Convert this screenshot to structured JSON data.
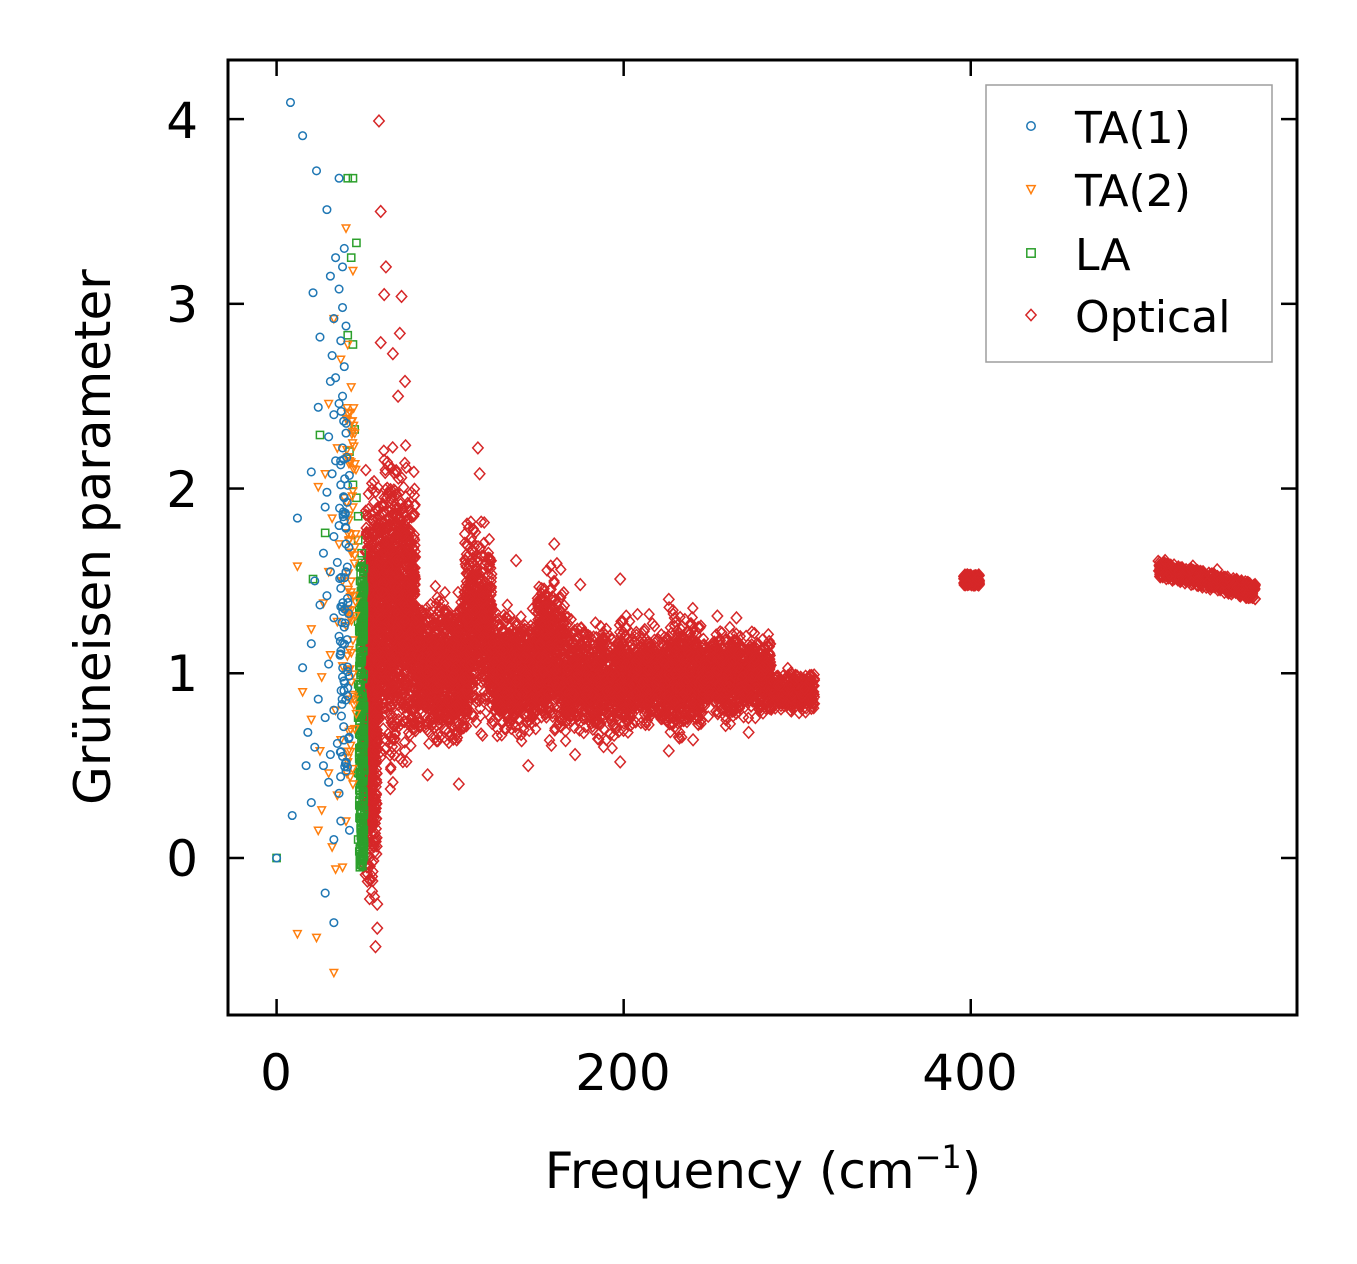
{
  "chart_data": {
    "type": "scatter",
    "title": "",
    "xlabel": "Frequency (cm",
    "xlabel_sup": "−1",
    "xlabel_tail": ")",
    "ylabel": "Grüneisen parameter",
    "xlim": [
      -28,
      588
    ],
    "ylim": [
      -0.85,
      4.32
    ],
    "xticks": [
      0,
      200,
      400
    ],
    "xtick_labels": [
      "0",
      "200",
      "400"
    ],
    "yticks": [
      0,
      1,
      2,
      3,
      4
    ],
    "ytick_labels": [
      "0",
      "1",
      "2",
      "3",
      "4"
    ],
    "grid": false,
    "legend_position": "top-right",
    "colors": {
      "ta1": "#1f77b4",
      "ta2": "#ff7f0e",
      "la": "#2ca02c",
      "optical": "#d62728"
    },
    "series": [
      {
        "name": "TA(1)",
        "color": "#1f77b4",
        "marker": "circle",
        "points": [
          [
            8,
            4.09
          ],
          [
            15,
            3.91
          ],
          [
            23,
            3.72
          ],
          [
            29,
            3.51
          ],
          [
            36,
            3.68
          ],
          [
            39,
            3.3
          ],
          [
            34,
            3.25
          ],
          [
            38,
            3.2
          ],
          [
            31,
            3.15
          ],
          [
            36,
            3.08
          ],
          [
            21,
            3.06
          ],
          [
            38,
            2.98
          ],
          [
            33,
            2.92
          ],
          [
            40,
            2.88
          ],
          [
            25,
            2.82
          ],
          [
            37,
            2.8
          ],
          [
            32,
            2.72
          ],
          [
            39,
            2.66
          ],
          [
            34,
            2.6
          ],
          [
            31,
            2.58
          ],
          [
            38,
            2.5
          ],
          [
            36,
            2.46
          ],
          [
            24,
            2.44
          ],
          [
            33,
            2.4
          ],
          [
            40,
            2.3
          ],
          [
            30,
            2.28
          ],
          [
            38,
            2.22
          ],
          [
            34,
            2.15
          ],
          [
            32,
            2.08
          ],
          [
            20,
            2.09
          ],
          [
            37,
            2.02
          ],
          [
            29,
            1.98
          ],
          [
            39,
            1.95
          ],
          [
            28,
            1.9
          ],
          [
            12,
            1.84
          ],
          [
            36,
            1.8
          ],
          [
            33,
            1.74
          ],
          [
            40,
            1.7
          ],
          [
            27,
            1.65
          ],
          [
            35,
            1.6
          ],
          [
            31,
            1.55
          ],
          [
            22,
            1.5
          ],
          [
            37,
            1.46
          ],
          [
            29,
            1.42
          ],
          [
            25,
            1.37
          ],
          [
            33,
            1.3
          ],
          [
            39,
            1.25
          ],
          [
            36,
            1.2
          ],
          [
            20,
            1.16
          ],
          [
            15,
            1.03
          ],
          [
            30,
            1.05
          ],
          [
            38,
            0.98
          ],
          [
            41,
            0.92
          ],
          [
            24,
            0.86
          ],
          [
            33,
            0.8
          ],
          [
            28,
            0.76
          ],
          [
            18,
            0.68
          ],
          [
            35,
            0.62
          ],
          [
            22,
            0.6
          ],
          [
            31,
            0.56
          ],
          [
            38,
            0.55
          ],
          [
            27,
            0.5
          ],
          [
            17,
            0.5
          ],
          [
            40,
            0.47
          ],
          [
            30,
            0.41
          ],
          [
            36,
            0.35
          ],
          [
            20,
            0.3
          ],
          [
            9,
            0.23
          ],
          [
            37,
            0.2
          ],
          [
            42,
            0.15
          ],
          [
            33,
            0.1
          ],
          [
            28,
            -0.19
          ],
          [
            33,
            -0.35
          ],
          [
            0,
            0.0
          ]
        ]
      },
      {
        "name": "TA(2)",
        "color": "#ff7f0e",
        "marker": "triangle-down",
        "points": [
          [
            40,
            3.41
          ],
          [
            44,
            3.18
          ],
          [
            33,
            2.92
          ],
          [
            41,
            2.78
          ],
          [
            37,
            2.7
          ],
          [
            43,
            2.55
          ],
          [
            30,
            2.46
          ],
          [
            40,
            2.38
          ],
          [
            45,
            2.3
          ],
          [
            35,
            2.22
          ],
          [
            42,
            2.15
          ],
          [
            28,
            2.08
          ],
          [
            24,
            2.01
          ],
          [
            39,
            1.95
          ],
          [
            44,
            1.9
          ],
          [
            32,
            1.84
          ],
          [
            41,
            1.76
          ],
          [
            36,
            1.7
          ],
          [
            45,
            1.64
          ],
          [
            12,
            1.58
          ],
          [
            30,
            1.55
          ],
          [
            38,
            1.5
          ],
          [
            43,
            1.44
          ],
          [
            27,
            1.38
          ],
          [
            40,
            1.33
          ],
          [
            35,
            1.28
          ],
          [
            20,
            1.24
          ],
          [
            44,
            1.18
          ],
          [
            31,
            1.1
          ],
          [
            38,
            1.04
          ],
          [
            26,
            0.98
          ],
          [
            15,
            0.9
          ],
          [
            42,
            0.86
          ],
          [
            34,
            0.8
          ],
          [
            20,
            0.75
          ],
          [
            45,
            0.7
          ],
          [
            37,
            0.64
          ],
          [
            25,
            0.58
          ],
          [
            41,
            0.52
          ],
          [
            30,
            0.46
          ],
          [
            44,
            0.4
          ],
          [
            35,
            0.34
          ],
          [
            26,
            0.26
          ],
          [
            40,
            0.2
          ],
          [
            24,
            0.15
          ],
          [
            32,
            0.06
          ],
          [
            38,
            -0.05
          ],
          [
            34,
            -0.06
          ],
          [
            12,
            -0.41
          ],
          [
            23,
            -0.43
          ],
          [
            33,
            -0.62
          ]
        ]
      },
      {
        "name": "LA",
        "color": "#2ca02c",
        "marker": "square",
        "points": [
          [
            41,
            3.68
          ],
          [
            44,
            3.68
          ],
          [
            46,
            3.33
          ],
          [
            43,
            3.25
          ],
          [
            41,
            2.83
          ],
          [
            44,
            2.78
          ],
          [
            25,
            2.29
          ],
          [
            45,
            2.32
          ],
          [
            42,
            2.2
          ],
          [
            44,
            2.02
          ],
          [
            46,
            1.95
          ],
          [
            47,
            1.85
          ],
          [
            28,
            1.76
          ],
          [
            47,
            1.72
          ],
          [
            49,
            1.65
          ],
          [
            48,
            1.58
          ],
          [
            49,
            1.5
          ],
          [
            21,
            1.51
          ],
          [
            48,
            1.42
          ],
          [
            50,
            1.35
          ],
          [
            47,
            1.28
          ],
          [
            49,
            1.2
          ],
          [
            50,
            1.12
          ],
          [
            48,
            1.06
          ],
          [
            49,
            1.0
          ],
          [
            47,
            0.94
          ],
          [
            48,
            0.88
          ],
          [
            49,
            0.82
          ],
          [
            47,
            0.76
          ],
          [
            48,
            0.7
          ],
          [
            49,
            0.64
          ],
          [
            48,
            0.58
          ],
          [
            49,
            0.52
          ],
          [
            47,
            0.46
          ],
          [
            48,
            0.4
          ],
          [
            50,
            0.34
          ],
          [
            49,
            0.28
          ],
          [
            48,
            0.22
          ],
          [
            49,
            0.16
          ],
          [
            47,
            0.1
          ],
          [
            48,
            0.05
          ],
          [
            49,
            0.0
          ],
          [
            48,
            -0.05
          ],
          [
            0,
            0.0
          ]
        ]
      },
      {
        "name": "Optical",
        "color": "#d62728",
        "marker": "diamond",
        "note": "dense point cloud; representative sampled points",
        "points": [
          [
            59,
            3.99
          ],
          [
            60,
            3.5
          ],
          [
            63,
            3.2
          ],
          [
            62,
            3.05
          ],
          [
            72,
            3.04
          ],
          [
            71,
            2.84
          ],
          [
            60,
            2.79
          ],
          [
            67,
            2.73
          ],
          [
            74,
            2.58
          ],
          [
            70,
            2.5
          ],
          [
            116,
            2.22
          ],
          [
            117,
            2.08
          ],
          [
            138,
            1.61
          ],
          [
            160,
            1.7
          ],
          [
            175,
            1.48
          ],
          [
            198,
            1.51
          ],
          [
            226,
            1.4
          ],
          [
            254,
            1.31
          ],
          [
            265,
            1.3
          ],
          [
            280,
            1.18
          ],
          [
            96,
            1.38
          ],
          [
            74,
            0.58
          ],
          [
            87,
            0.45
          ],
          [
            105,
            0.4
          ],
          [
            145,
            0.5
          ],
          [
            172,
            0.56
          ],
          [
            198,
            0.52
          ],
          [
            226,
            0.58
          ],
          [
            240,
            0.64
          ],
          [
            272,
            0.68
          ],
          [
            300,
            0.98
          ],
          [
            58,
            -0.25
          ],
          [
            55,
            -0.18
          ],
          [
            57,
            -0.48
          ],
          [
            58,
            -0.38
          ],
          [
            55,
            -0.1
          ],
          [
            400,
            1.52
          ],
          [
            398,
            1.48
          ],
          [
            404,
            1.51
          ],
          [
            512,
            1.61
          ],
          [
            528,
            1.58
          ],
          [
            542,
            1.56
          ],
          [
            556,
            1.5
          ],
          [
            563,
            1.47
          ],
          [
            548,
            1.52
          ]
        ],
        "clusters": [
          {
            "x": [
              50,
              80
            ],
            "y": [
              -0.5,
              2.6
            ],
            "density": "very high"
          },
          {
            "x": [
              80,
              310
            ],
            "y": [
              0.55,
              1.4
            ],
            "density": "very high"
          },
          {
            "x": [
              395,
              406
            ],
            "y": [
              1.47,
              1.54
            ],
            "density": "compact"
          },
          {
            "x": [
              508,
              564
            ],
            "y": [
              1.45,
              1.62
            ],
            "density": "compact"
          }
        ]
      }
    ]
  }
}
